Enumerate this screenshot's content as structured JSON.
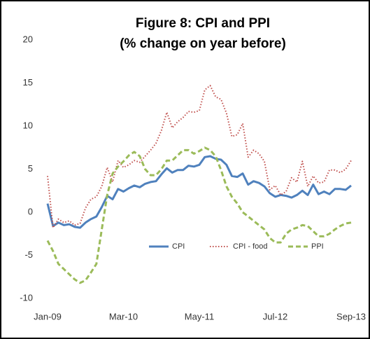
{
  "chart_data": {
    "type": "line",
    "title": "Figure 8: CPI and PPI",
    "subtitle": "(% change on year before)",
    "categories": [
      "Jan-09",
      null,
      null,
      null,
      null,
      null,
      null,
      null,
      null,
      null,
      null,
      null,
      null,
      null,
      "Mar-10",
      null,
      null,
      null,
      null,
      null,
      null,
      null,
      null,
      null,
      null,
      null,
      null,
      null,
      "May-11",
      null,
      null,
      null,
      null,
      null,
      null,
      null,
      null,
      null,
      null,
      null,
      null,
      null,
      "Jul-12",
      null,
      null,
      null,
      null,
      null,
      null,
      null,
      null,
      null,
      null,
      null,
      null,
      null,
      "Sep-13"
    ],
    "series": [
      {
        "name": "CPI",
        "color": "#4f81bd",
        "style": "solid",
        "values": [
          1.0,
          -1.6,
          -1.2,
          -1.5,
          -1.4,
          -1.7,
          -1.8,
          -1.2,
          -0.8,
          -0.5,
          0.6,
          1.9,
          1.5,
          2.7,
          2.4,
          2.8,
          3.1,
          2.9,
          3.3,
          3.5,
          3.6,
          4.4,
          5.1,
          4.6,
          4.9,
          4.9,
          5.4,
          5.3,
          5.5,
          6.4,
          6.5,
          6.2,
          6.1,
          5.5,
          4.2,
          4.1,
          4.5,
          3.2,
          3.6,
          3.4,
          3.0,
          2.2,
          1.8,
          2.0,
          1.9,
          1.7,
          2.0,
          2.5,
          2.0,
          3.2,
          2.1,
          2.4,
          2.1,
          2.7,
          2.7,
          2.6,
          3.1
        ]
      },
      {
        "name": "CPI - food",
        "color": "#c0504d",
        "style": "dotted",
        "values": [
          4.2,
          -1.8,
          -0.8,
          -1.2,
          -1.0,
          -1.5,
          -1.3,
          0.5,
          1.5,
          1.8,
          3.0,
          5.2,
          3.5,
          6.0,
          5.2,
          5.5,
          6.0,
          5.8,
          6.5,
          7.2,
          8.0,
          9.5,
          11.6,
          9.8,
          10.5,
          11.0,
          11.7,
          11.6,
          11.8,
          14.2,
          14.7,
          13.4,
          13.1,
          11.5,
          8.8,
          9.0,
          10.3,
          6.4,
          7.2,
          6.8,
          5.9,
          2.6,
          3.1,
          2.0,
          2.4,
          4.0,
          3.5,
          5.9,
          3.0,
          4.2,
          3.4,
          3.5,
          4.9,
          4.9,
          4.6,
          5.0,
          6.0
        ]
      },
      {
        "name": "PPI",
        "color": "#9bbb59",
        "style": "dashed",
        "values": [
          -3.3,
          -4.5,
          -6.0,
          -6.6,
          -7.2,
          -7.8,
          -8.2,
          -7.9,
          -7.0,
          -6.0,
          -2.0,
          2.0,
          4.5,
          5.3,
          5.9,
          6.6,
          7.0,
          6.5,
          5.0,
          4.3,
          4.3,
          5.0,
          6.0,
          6.0,
          6.6,
          7.2,
          7.2,
          6.8,
          7.1,
          7.5,
          7.2,
          6.5,
          4.9,
          3.0,
          1.8,
          1.0,
          0.0,
          -0.5,
          -1.0,
          -1.5,
          -2.0,
          -3.0,
          -3.5,
          -3.5,
          -2.5,
          -2.0,
          -1.8,
          -1.5,
          -1.6,
          -2.2,
          -2.8,
          -2.8,
          -2.5,
          -2.0,
          -1.6,
          -1.3,
          -1.2
        ]
      }
    ],
    "ylim": [
      -10,
      20
    ],
    "yticks": [
      -10,
      -5,
      0,
      5,
      10,
      15,
      20
    ],
    "grid": false,
    "legend": "bottom"
  }
}
